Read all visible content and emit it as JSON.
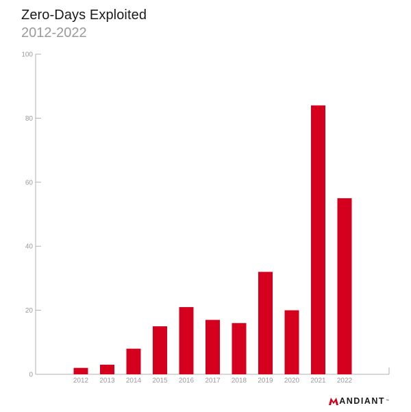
{
  "title": "Zero-Days Exploited",
  "subtitle": "2012-2022",
  "brand": {
    "name": "ANDIANT",
    "trademark": "™"
  },
  "colors": {
    "bar": "#d4001d",
    "axis": "#b0b0b0",
    "tick_text": "#9a9a9a",
    "brand_mark": "#d4001d"
  },
  "chart_data": {
    "type": "bar",
    "title": "Zero-Days Exploited",
    "subtitle": "2012-2022",
    "xlabel": "",
    "ylabel": "",
    "categories": [
      "2012",
      "2013",
      "2014",
      "2015",
      "2016",
      "2017",
      "2018",
      "2019",
      "2020",
      "2021",
      "2022"
    ],
    "values": [
      2,
      3,
      8,
      15,
      21,
      17,
      16,
      32,
      20,
      84,
      55
    ],
    "ylim": [
      0,
      100
    ],
    "yticks": [
      0,
      20,
      40,
      60,
      80,
      100
    ],
    "grid": false,
    "legend": "none"
  }
}
